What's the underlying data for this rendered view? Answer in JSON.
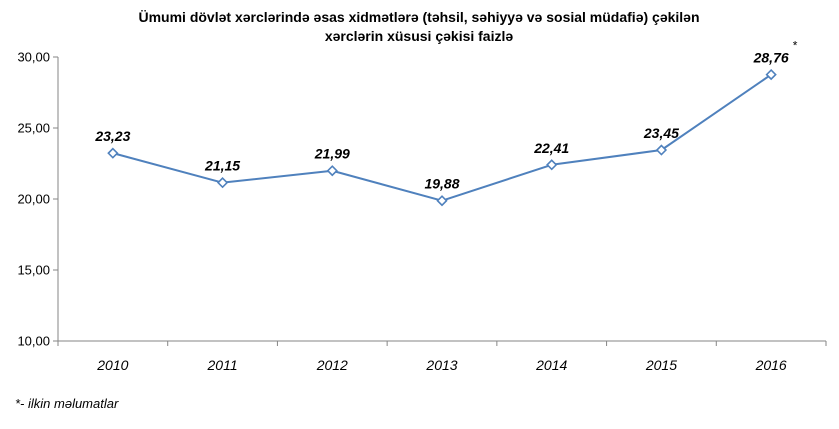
{
  "chart_data": {
    "type": "line",
    "title_lines": [
      "Ümumi dövlət xərclərində əsas xidmətlərə (təhsil, səhiyyə və sosial müdafiə) çəkilən",
      "xərclərin xüsusi çəkisi faizlə"
    ],
    "categories": [
      "2010",
      "2011",
      "2012",
      "2013",
      "2014",
      "2015",
      "2016"
    ],
    "values": [
      23.23,
      21.15,
      21.99,
      19.88,
      22.41,
      23.45,
      28.76
    ],
    "data_labels": [
      "23,23",
      "21,15",
      "21,99",
      "19,88",
      "22,41",
      "23,45",
      "28,76"
    ],
    "y_ticks": [
      10,
      15,
      20,
      25,
      30
    ],
    "y_tick_labels": [
      "10,00",
      "15,00",
      "20,00",
      "25,00",
      "30,00"
    ],
    "ylim": [
      10,
      30
    ],
    "xlabel": "",
    "ylabel": "",
    "grid": false,
    "legend": "none",
    "line_color": "#4f81bd",
    "marker": "diamond",
    "annotation": "*"
  },
  "footnote": "*- ilkin məlumatlar"
}
